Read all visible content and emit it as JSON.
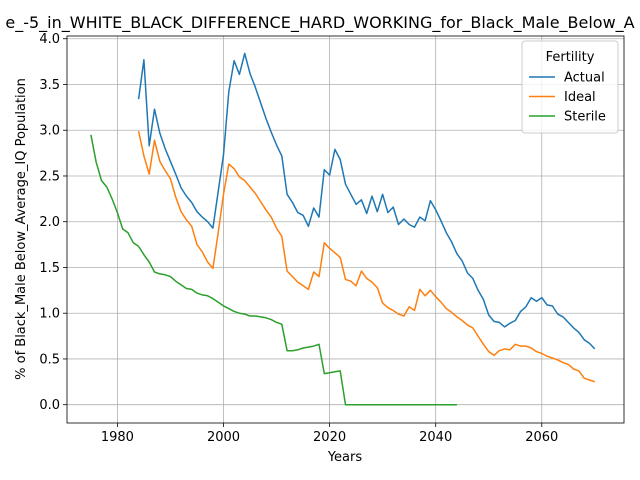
{
  "chart_data": {
    "type": "line",
    "title": "e_-5_in_WHITE_BLACK_DIFFERENCE_HARD_WORKING_for_Black_Male_Below_A",
    "xlabel": "Years",
    "ylabel": "% of Black_Male Below_Average_IQ Population",
    "xlim": [
      1970.5,
      2075.5
    ],
    "ylim": [
      -0.2,
      4.03
    ],
    "grid": true,
    "x_ticks": [
      "1980",
      "2000",
      "2020",
      "2040",
      "2060"
    ],
    "y_ticks": [
      "0.0",
      "0.5",
      "1.0",
      "1.5",
      "2.0",
      "2.5",
      "3.0",
      "3.5",
      "4.0"
    ],
    "legend": {
      "title": "Fertility",
      "placement": "top-right"
    },
    "series": [
      {
        "name": "Actual",
        "color": "#1f77b4",
        "x": [
          1984,
          1985,
          1986,
          1987,
          1988,
          1989,
          1990,
          1991,
          1992,
          1993,
          1994,
          1995,
          1996,
          1997,
          1998,
          1999,
          2000,
          2001,
          2002,
          2003,
          2004,
          2005,
          2006,
          2007,
          2008,
          2009,
          2010,
          2011,
          2012,
          2013,
          2014,
          2015,
          2016,
          2017,
          2018,
          2019,
          2020,
          2021,
          2022,
          2023,
          2024,
          2025,
          2026,
          2027,
          2028,
          2029,
          2030,
          2031,
          2032,
          2033,
          2034,
          2035,
          2036,
          2037,
          2038,
          2039,
          2040,
          2041,
          2042,
          2043,
          2044,
          2045,
          2046,
          2047,
          2048,
          2049,
          2050,
          2051,
          2052,
          2053,
          2054,
          2055,
          2056,
          2057,
          2058,
          2059,
          2060,
          2061,
          2062,
          2063,
          2064,
          2065,
          2066,
          2067,
          2068,
          2069,
          2070
        ],
        "values": [
          3.34,
          3.77,
          2.83,
          3.23,
          2.97,
          2.8,
          2.66,
          2.52,
          2.37,
          2.28,
          2.21,
          2.11,
          2.05,
          2.0,
          1.93,
          2.33,
          2.73,
          3.42,
          3.76,
          3.61,
          3.84,
          3.62,
          3.47,
          3.3,
          3.13,
          2.98,
          2.84,
          2.72,
          2.3,
          2.21,
          2.1,
          2.07,
          1.95,
          2.15,
          2.05,
          2.57,
          2.51,
          2.79,
          2.68,
          2.41,
          2.3,
          2.19,
          2.24,
          2.09,
          2.28,
          2.11,
          2.3,
          2.1,
          2.16,
          1.97,
          2.03,
          1.97,
          1.94,
          2.05,
          2.01,
          2.23,
          2.13,
          2.01,
          1.88,
          1.78,
          1.65,
          1.57,
          1.44,
          1.38,
          1.25,
          1.15,
          0.98,
          0.91,
          0.9,
          0.85,
          0.89,
          0.92,
          1.02,
          1.07,
          1.17,
          1.13,
          1.17,
          1.09,
          1.08,
          0.99,
          0.96,
          0.9,
          0.84,
          0.79,
          0.71,
          0.67,
          0.61
        ]
      },
      {
        "name": "Ideal",
        "color": "#ff7f0e",
        "x": [
          1984,
          1985,
          1986,
          1987,
          1988,
          1989,
          1990,
          1991,
          1992,
          1993,
          1994,
          1995,
          1996,
          1997,
          1998,
          1999,
          2000,
          2001,
          2002,
          2003,
          2004,
          2005,
          2006,
          2007,
          2008,
          2009,
          2010,
          2011,
          2012,
          2013,
          2014,
          2015,
          2016,
          2017,
          2018,
          2019,
          2020,
          2021,
          2022,
          2023,
          2024,
          2025,
          2026,
          2027,
          2028,
          2029,
          2030,
          2031,
          2032,
          2033,
          2034,
          2035,
          2036,
          2037,
          2038,
          2039,
          2040,
          2041,
          2042,
          2043,
          2044,
          2045,
          2046,
          2047,
          2048,
          2049,
          2050,
          2051,
          2052,
          2053,
          2054,
          2055,
          2056,
          2057,
          2058,
          2059,
          2060,
          2061,
          2062,
          2063,
          2064,
          2065,
          2066,
          2067,
          2068,
          2069,
          2070
        ],
        "values": [
          2.99,
          2.72,
          2.52,
          2.89,
          2.66,
          2.56,
          2.47,
          2.27,
          2.11,
          2.02,
          1.95,
          1.75,
          1.67,
          1.56,
          1.49,
          1.88,
          2.3,
          2.63,
          2.58,
          2.49,
          2.45,
          2.38,
          2.31,
          2.22,
          2.13,
          2.05,
          1.93,
          1.84,
          1.46,
          1.4,
          1.34,
          1.3,
          1.26,
          1.45,
          1.4,
          1.77,
          1.71,
          1.66,
          1.61,
          1.37,
          1.35,
          1.3,
          1.46,
          1.38,
          1.34,
          1.28,
          1.11,
          1.06,
          1.03,
          0.99,
          0.97,
          1.07,
          1.03,
          1.26,
          1.19,
          1.25,
          1.18,
          1.12,
          1.05,
          1.01,
          0.96,
          0.92,
          0.87,
          0.84,
          0.75,
          0.66,
          0.58,
          0.54,
          0.59,
          0.61,
          0.6,
          0.66,
          0.64,
          0.64,
          0.62,
          0.58,
          0.56,
          0.53,
          0.51,
          0.49,
          0.46,
          0.44,
          0.39,
          0.37,
          0.29,
          0.27,
          0.25
        ]
      },
      {
        "name": "Sterile",
        "color": "#2ca02c",
        "x": [
          1975,
          1976,
          1977,
          1978,
          1979,
          1980,
          1981,
          1982,
          1983,
          1984,
          1985,
          1986,
          1987,
          1988,
          1989,
          1990,
          1991,
          1992,
          1993,
          1994,
          1995,
          1996,
          1997,
          1998,
          1999,
          2000,
          2001,
          2002,
          2003,
          2004,
          2005,
          2006,
          2007,
          2008,
          2009,
          2010,
          2011,
          2012,
          2013,
          2014,
          2015,
          2016,
          2017,
          2018,
          2019,
          2020,
          2021,
          2022,
          2023,
          2024,
          2025,
          2026,
          2027,
          2028,
          2029,
          2030,
          2031,
          2032,
          2033,
          2034,
          2035,
          2036,
          2037,
          2038,
          2039,
          2040,
          2041,
          2042,
          2043,
          2044
        ],
        "values": [
          2.95,
          2.65,
          2.45,
          2.38,
          2.25,
          2.1,
          1.92,
          1.88,
          1.77,
          1.73,
          1.64,
          1.56,
          1.45,
          1.43,
          1.42,
          1.4,
          1.35,
          1.31,
          1.27,
          1.26,
          1.22,
          1.2,
          1.19,
          1.16,
          1.12,
          1.08,
          1.05,
          1.02,
          1.0,
          0.99,
          0.97,
          0.97,
          0.96,
          0.95,
          0.93,
          0.9,
          0.88,
          0.59,
          0.59,
          0.6,
          0.62,
          0.63,
          0.64,
          0.66,
          0.34,
          0.35,
          0.36,
          0.37,
          0.0,
          0.0,
          0.0,
          0.0,
          0.0,
          0.0,
          0.0,
          0.0,
          0.0,
          0.0,
          0.0,
          0.0,
          0.0,
          0.0,
          0.0,
          0.0,
          0.0,
          0.0,
          0.0,
          0.0,
          0.0,
          0.0
        ]
      }
    ]
  }
}
